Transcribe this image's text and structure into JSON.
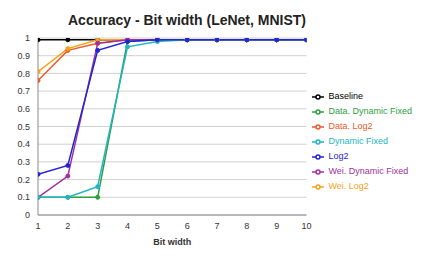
{
  "chart_data": {
    "type": "line",
    "title": "Accuracy - Bit width (LeNet, MNIST)",
    "x_label": "Bit width",
    "x": [
      1,
      2,
      3,
      4,
      5,
      6,
      7,
      8,
      9,
      10
    ],
    "xlim": [
      1,
      10
    ],
    "xticks": [
      1,
      2,
      3,
      4,
      5,
      6,
      7,
      8,
      9,
      10
    ],
    "ylim": [
      0,
      1
    ],
    "yticks": [
      0,
      0.1,
      0.2,
      0.3,
      0.4,
      0.5,
      0.6,
      0.7,
      0.8,
      0.9,
      1
    ],
    "grid": true,
    "legend": "right",
    "marker": "circle",
    "series": [
      {
        "name": "Baseline",
        "color": "#000000",
        "values": [
          0.99,
          0.99,
          0.99,
          0.99,
          0.99,
          0.99,
          0.99,
          0.99,
          0.99,
          0.99
        ]
      },
      {
        "name": "Data. Log2",
        "color": "#ee5a2a",
        "values": [
          0.76,
          0.93,
          0.97,
          0.99,
          0.99,
          0.99,
          0.99,
          0.99,
          0.99,
          0.99
        ]
      },
      {
        "name": "Wei. Log2",
        "color": "#f7a21b",
        "values": [
          0.81,
          0.94,
          0.99,
          0.99,
          0.99,
          0.99,
          0.99,
          0.99,
          0.99,
          0.99
        ]
      },
      {
        "name": "Data. Dynamic Fixed",
        "color": "#2e9e3f",
        "values": [
          0.1,
          0.1,
          0.1,
          0.98,
          0.99,
          0.99,
          0.99,
          0.99,
          0.99,
          0.99
        ]
      },
      {
        "name": "Wei. Dynamic Fixed",
        "color": "#a030a0",
        "values": [
          0.1,
          0.22,
          0.97,
          0.99,
          0.99,
          0.99,
          0.99,
          0.99,
          0.99,
          0.99
        ]
      },
      {
        "name": "Dynamic Fixed",
        "color": "#22b5c2",
        "values": [
          0.1,
          0.1,
          0.16,
          0.95,
          0.98,
          0.99,
          0.99,
          0.99,
          0.99,
          0.99
        ]
      },
      {
        "name": "Log2",
        "color": "#2424d6",
        "values": [
          0.23,
          0.28,
          0.93,
          0.98,
          0.99,
          0.99,
          0.99,
          0.99,
          0.99,
          0.99
        ]
      }
    ]
  }
}
